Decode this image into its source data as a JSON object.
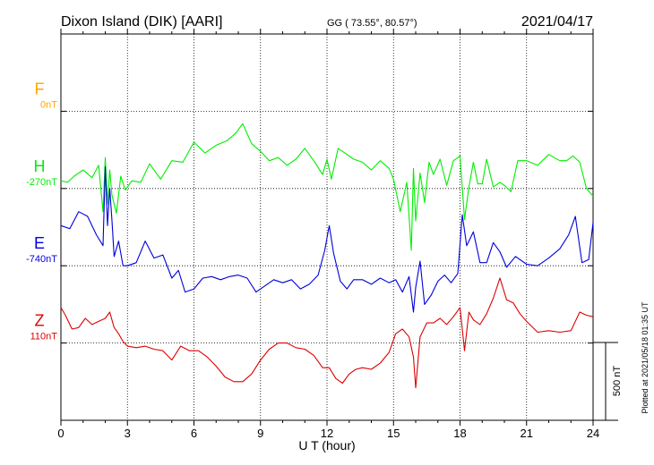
{
  "header": {
    "station": "Dixon Island (DIK)  [AARI]",
    "coords": "GG ( 73.55°,  80.57°)",
    "date": "2021/04/17"
  },
  "scale_label": "500 nT",
  "plotted_note": "Plotted at 2021/05/18 01:35 UT",
  "chart_data": {
    "type": "line",
    "xlabel": "U T (hour)",
    "x_ticks": [
      "0",
      "3",
      "6",
      "9",
      "12",
      "15",
      "18",
      "21",
      "24"
    ],
    "xlim": [
      0,
      24
    ],
    "nt_per_division": 500,
    "grid": true,
    "series": [
      {
        "name": "F",
        "baseline_label": "0nT",
        "color": "#ffa500",
        "x": [],
        "y": []
      },
      {
        "name": "H",
        "baseline_label": "-270nT",
        "color": "#00ee00",
        "x": [
          0,
          0.3,
          0.6,
          1.0,
          1.4,
          1.7,
          1.9,
          2.0,
          2.1,
          2.2,
          2.3,
          2.5,
          2.7,
          2.9,
          3.2,
          3.6,
          4.0,
          4.5,
          5.0,
          5.5,
          6.0,
          6.5,
          7.0,
          7.5,
          7.9,
          8.2,
          8.6,
          9.0,
          9.4,
          9.8,
          10.2,
          10.6,
          11.0,
          11.4,
          11.8,
          12.0,
          12.2,
          12.5,
          12.8,
          13.2,
          13.6,
          14.0,
          14.4,
          14.8,
          15.0,
          15.3,
          15.6,
          15.8,
          15.9,
          16.0,
          16.2,
          16.4,
          16.6,
          16.8,
          17.1,
          17.4,
          17.7,
          18.0,
          18.2,
          18.4,
          18.6,
          18.8,
          19.0,
          19.2,
          19.5,
          19.8,
          20.0,
          20.3,
          20.6,
          21.0,
          21.5,
          22.0,
          22.5,
          22.8,
          23.1,
          23.4,
          23.7,
          24.0
        ],
        "y": [
          50,
          40,
          80,
          120,
          70,
          150,
          -150,
          200,
          -100,
          120,
          -40,
          -160,
          80,
          -10,
          50,
          40,
          160,
          60,
          180,
          170,
          300,
          230,
          280,
          310,
          360,
          420,
          290,
          240,
          180,
          200,
          150,
          190,
          260,
          180,
          90,
          190,
          60,
          260,
          230,
          190,
          170,
          120,
          180,
          130,
          60,
          -150,
          40,
          -400,
          130,
          -210,
          100,
          -90,
          170,
          90,
          190,
          20,
          180,
          210,
          -200,
          10,
          170,
          30,
          30,
          190,
          10,
          40,
          20,
          -20,
          180,
          180,
          150,
          220,
          180,
          180,
          210,
          170,
          0,
          -50
        ]
      },
      {
        "name": "E",
        "baseline_label": "-740nT",
        "color": "#0000dd",
        "x": [
          0,
          0.4,
          0.8,
          1.2,
          1.6,
          1.9,
          2.0,
          2.1,
          2.2,
          2.3,
          2.4,
          2.6,
          2.8,
          3.0,
          3.4,
          3.8,
          4.2,
          4.6,
          5.0,
          5.3,
          5.6,
          6.0,
          6.4,
          6.8,
          7.2,
          7.6,
          8.0,
          8.4,
          8.8,
          9.2,
          9.6,
          10.0,
          10.4,
          10.8,
          11.2,
          11.6,
          11.9,
          12.1,
          12.3,
          12.6,
          12.9,
          13.2,
          13.6,
          14.0,
          14.4,
          14.8,
          15.1,
          15.4,
          15.7,
          15.9,
          16.0,
          16.2,
          16.4,
          16.7,
          17.0,
          17.3,
          17.6,
          17.9,
          18.1,
          18.3,
          18.6,
          18.9,
          19.2,
          19.5,
          19.8,
          20.1,
          20.5,
          21.0,
          21.5,
          22.0,
          22.5,
          22.9,
          23.2,
          23.5,
          23.8,
          24.0
        ],
        "y": [
          260,
          240,
          350,
          320,
          200,
          130,
          640,
          260,
          500,
          300,
          60,
          160,
          0,
          0,
          20,
          160,
          50,
          70,
          -80,
          -30,
          -170,
          -150,
          -80,
          -70,
          -90,
          -70,
          -60,
          -80,
          -170,
          -130,
          -90,
          -110,
          -90,
          -150,
          -120,
          -60,
          100,
          260,
          80,
          -100,
          -150,
          -90,
          -90,
          -120,
          -80,
          -110,
          -90,
          -170,
          -70,
          -300,
          -140,
          30,
          -250,
          -190,
          -100,
          -60,
          -110,
          -50,
          330,
          130,
          220,
          20,
          20,
          150,
          90,
          -10,
          60,
          10,
          0,
          50,
          110,
          200,
          320,
          20,
          40,
          280
        ]
      },
      {
        "name": "Z",
        "baseline_label": "110nT",
        "color": "#dd0000",
        "x": [
          0,
          0.2,
          0.5,
          0.8,
          1.1,
          1.4,
          1.7,
          2.0,
          2.2,
          2.4,
          2.6,
          2.8,
          3.0,
          3.4,
          3.8,
          4.2,
          4.6,
          5.0,
          5.4,
          5.8,
          6.2,
          6.6,
          7.0,
          7.4,
          7.8,
          8.2,
          8.6,
          9.0,
          9.4,
          9.8,
          10.2,
          10.6,
          11.0,
          11.4,
          11.8,
          12.1,
          12.4,
          12.7,
          13.0,
          13.3,
          13.6,
          14.0,
          14.4,
          14.8,
          15.1,
          15.4,
          15.7,
          15.9,
          16.0,
          16.2,
          16.5,
          16.8,
          17.1,
          17.4,
          17.7,
          18.0,
          18.2,
          18.4,
          18.6,
          18.9,
          19.2,
          19.5,
          19.8,
          20.1,
          20.4,
          20.7,
          21.0,
          21.5,
          22.0,
          22.5,
          23.0,
          23.4,
          23.7,
          24.0
        ],
        "y": [
          230,
          180,
          90,
          100,
          160,
          120,
          140,
          160,
          200,
          100,
          60,
          10,
          -20,
          -30,
          -20,
          -40,
          -50,
          -110,
          -20,
          -50,
          -50,
          -90,
          -150,
          -220,
          -250,
          -250,
          -200,
          -110,
          -40,
          0,
          0,
          -30,
          -40,
          -80,
          -160,
          -160,
          -230,
          -260,
          -200,
          -170,
          -160,
          -170,
          -130,
          -60,
          60,
          90,
          40,
          -90,
          -290,
          40,
          130,
          130,
          160,
          120,
          170,
          230,
          -50,
          200,
          150,
          120,
          190,
          290,
          420,
          280,
          260,
          190,
          140,
          70,
          80,
          70,
          80,
          200,
          180,
          170
        ]
      }
    ]
  }
}
